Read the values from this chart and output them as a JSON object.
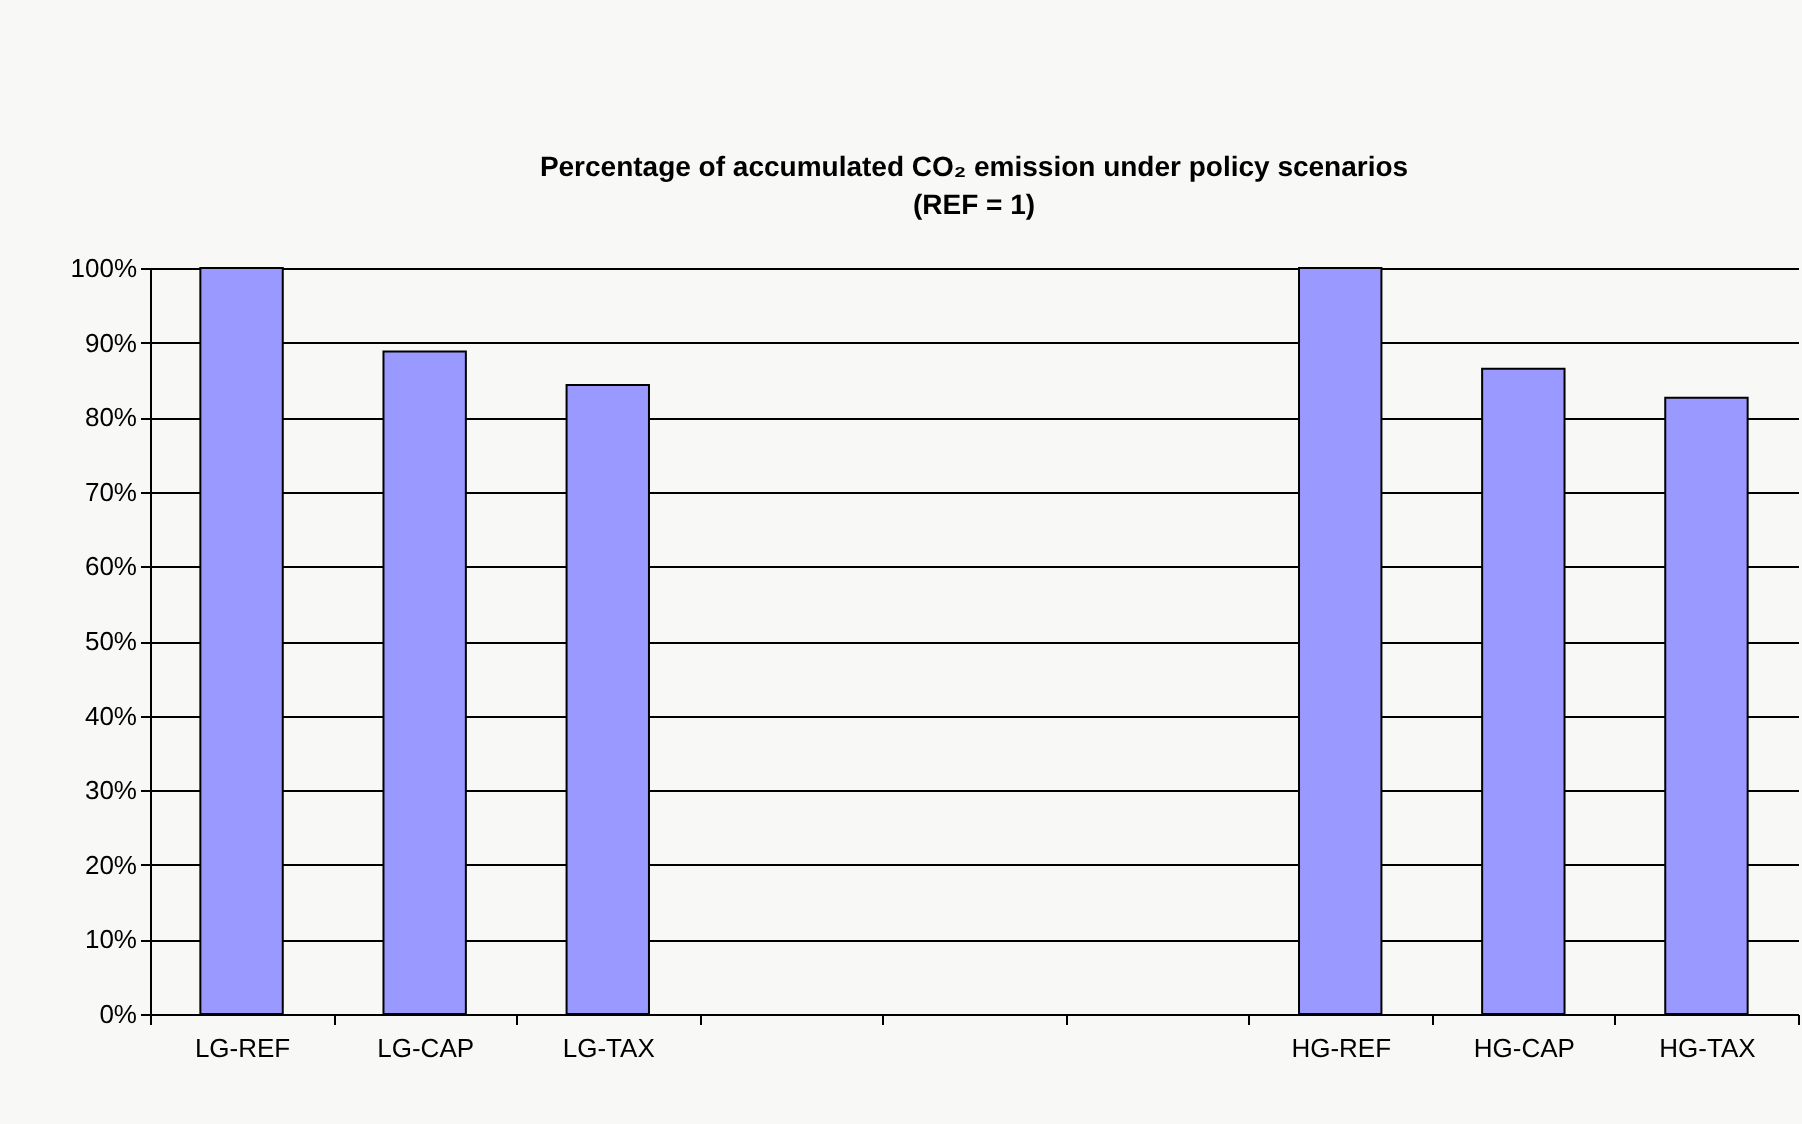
{
  "chart_data": {
    "type": "bar",
    "title": "Percentage of accumulated CO₂ emission under policy scenarios",
    "subtitle": "(REF = 1)",
    "categories": [
      "LG-REF",
      "LG-CAP",
      "LG-TAX",
      null,
      null,
      null,
      "HG-REF",
      "HG-CAP",
      "HG-TAX"
    ],
    "values": [
      100,
      88.8,
      84.3,
      null,
      null,
      null,
      100,
      86.5,
      82.6
    ],
    "color": "#9999ff",
    "ylim": [
      0,
      100
    ],
    "yticks": [
      {
        "value": 0,
        "label": "0%"
      },
      {
        "value": 10,
        "label": "10%"
      },
      {
        "value": 20,
        "label": "20%"
      },
      {
        "value": 30,
        "label": "30%"
      },
      {
        "value": 40,
        "label": "40%"
      },
      {
        "value": 50,
        "label": "50%"
      },
      {
        "value": 60,
        "label": "60%"
      },
      {
        "value": 70,
        "label": "70%"
      },
      {
        "value": 80,
        "label": "80%"
      },
      {
        "value": 90,
        "label": "90%"
      },
      {
        "value": 100,
        "label": "100%"
      }
    ],
    "grid": "y"
  }
}
